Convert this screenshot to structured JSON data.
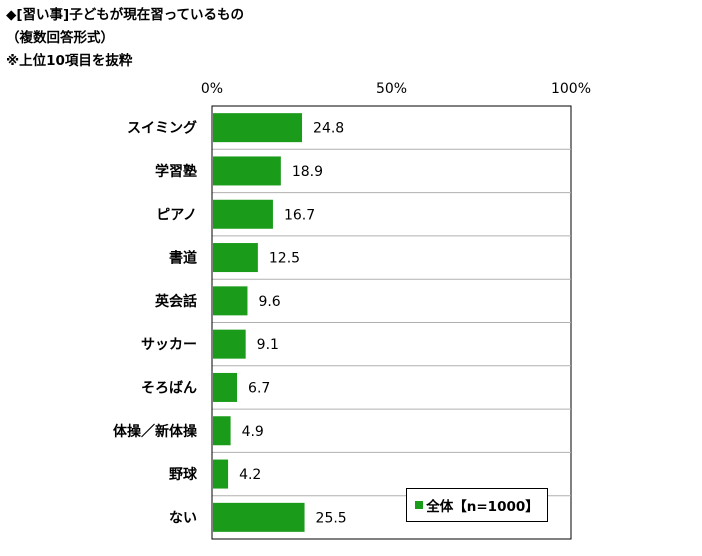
{
  "header": {
    "line1": "◆[習い事]子どもが現在習っているもの",
    "line2": "（複数回答形式）",
    "line3": "※上位10項目を抜粋"
  },
  "legend": {
    "label": "全体【n=1000】"
  },
  "colors": {
    "bar": "#1a9b1a",
    "grid": "#b0b0b0",
    "axis": "#000000"
  },
  "chart_data": {
    "type": "bar",
    "orientation": "horizontal",
    "categories": [
      "スイミング",
      "学習塾",
      "ピアノ",
      "書道",
      "英会話",
      "サッカー",
      "そろばん",
      "体操／新体操",
      "野球",
      "ない"
    ],
    "series": [
      {
        "name": "全体【n=1000】",
        "values": [
          24.8,
          18.9,
          16.7,
          12.5,
          9.6,
          9.1,
          6.7,
          4.9,
          4.2,
          25.5
        ]
      }
    ],
    "value_labels": [
      "24.8",
      "18.9",
      "16.7",
      "12.5",
      "9.6",
      "9.1",
      "6.7",
      "4.9",
      "4.2",
      "25.5"
    ],
    "xlim": [
      0,
      100
    ],
    "ticks": [
      0,
      50,
      100
    ],
    "tick_labels": [
      "0%",
      "50%",
      "100%"
    ],
    "grid": true,
    "legend_position": "bottom-right",
    "title": "",
    "xlabel": "",
    "ylabel": ""
  }
}
